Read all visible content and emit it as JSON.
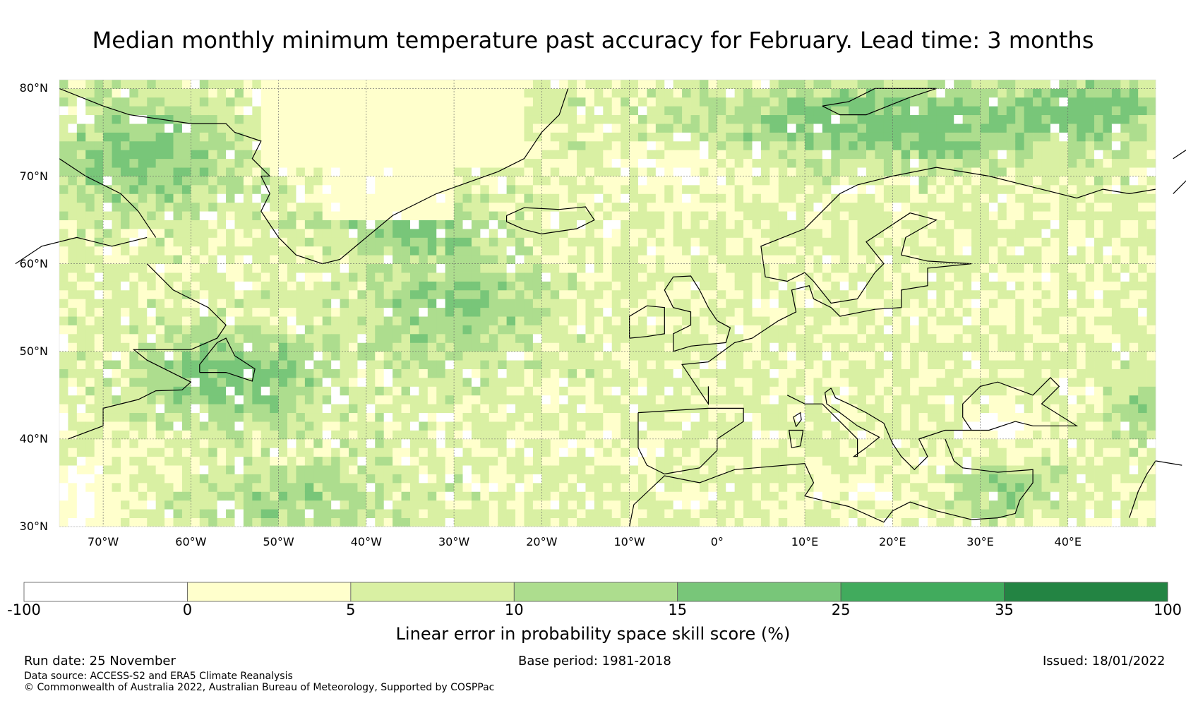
{
  "title": "Median monthly minimum temperature past accuracy for February. Lead time: 3 months",
  "map": {
    "region": "North Atlantic and Europe",
    "lon_range": [
      -75,
      50
    ],
    "lat_range": [
      30,
      81
    ],
    "lat_labels": [
      "80°N",
      "70°N",
      "60°N",
      "50°N",
      "40°N",
      "30°N"
    ],
    "lat_values": [
      80,
      70,
      60,
      50,
      40,
      30
    ],
    "lon_labels": [
      "70°W",
      "60°W",
      "50°W",
      "40°W",
      "30°W",
      "20°W",
      "10°W",
      "0°",
      "10°E",
      "20°E",
      "30°E",
      "40°E"
    ],
    "lon_values": [
      -70,
      -60,
      -50,
      -40,
      -30,
      -20,
      -10,
      0,
      10,
      20,
      30,
      40
    ]
  },
  "colorbar": {
    "label": "Linear error in probability space skill score (%)",
    "ticks": [
      "-100",
      "0",
      "5",
      "10",
      "15",
      "25",
      "35",
      "100"
    ],
    "colors": [
      "#ffffff",
      "#ffffcc",
      "#d9f0a3",
      "#addd8e",
      "#78c679",
      "#41ab5d",
      "#238443"
    ]
  },
  "footer": {
    "run_date": "Run date: 25 November",
    "base_period": "Base period: 1981-2018",
    "issued": "Issued: 18/01/2022",
    "data_source": "Data source: ACCESS-S2 and ERA5 Climate Reanalysis",
    "copyright": "© Commonwealth of Australia 2022, Australian Bureau of Meteorology, Supported by COSPPac"
  }
}
